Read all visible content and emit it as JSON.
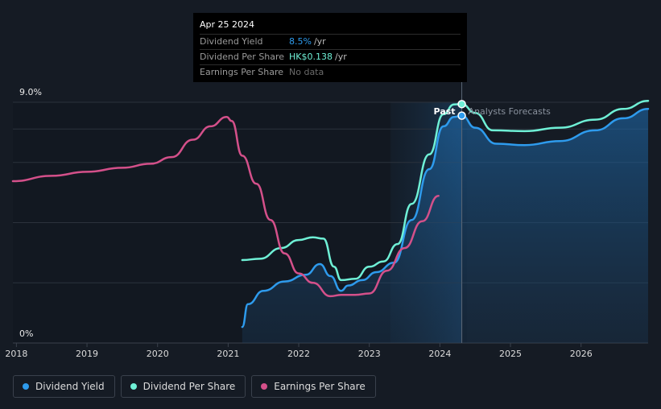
{
  "tooltip": {
    "date": "Apr 25 2024",
    "rows": [
      {
        "label": "Dividend Yield",
        "value": "8.5%",
        "unit": "/yr",
        "color": "#2e9bed"
      },
      {
        "label": "Dividend Per Share",
        "value": "HK$0.138",
        "unit": "/yr",
        "color": "#6ff0d6"
      },
      {
        "label": "Earnings Per Share",
        "value": "No data",
        "unit": "",
        "color": "#6b6b6b"
      }
    ]
  },
  "legend": [
    {
      "label": "Dividend Yield",
      "color": "#2e9bed"
    },
    {
      "label": "Dividend Per Share",
      "color": "#6ff0d6"
    },
    {
      "label": "Earnings Per Share",
      "color": "#d4508a"
    }
  ],
  "chart_data": {
    "type": "line",
    "y_axis": {
      "top_label": "9.0%",
      "bottom_label": "0%",
      "ylim": [
        0,
        9.0
      ]
    },
    "x_axis": {
      "ticks": [
        "2018",
        "2019",
        "2020",
        "2021",
        "2022",
        "2023",
        "2024",
        "2025",
        "2026"
      ],
      "xlim": [
        2017.95,
        2026.95
      ]
    },
    "regions": {
      "past_label": "Past",
      "forecast_label": "Analysts Forecasts",
      "past_start": 2023.3,
      "split": 2024.31
    },
    "highlight_date": 2024.31,
    "series": [
      {
        "name": "Dividend Yield",
        "color": "#2e9bed",
        "fill": true,
        "points": [
          [
            2021.2,
            0.6
          ],
          [
            2021.28,
            1.45
          ],
          [
            2021.5,
            1.95
          ],
          [
            2021.8,
            2.3
          ],
          [
            2022.1,
            2.55
          ],
          [
            2022.3,
            2.95
          ],
          [
            2022.45,
            2.5
          ],
          [
            2022.6,
            1.95
          ],
          [
            2022.7,
            2.15
          ],
          [
            2022.9,
            2.35
          ],
          [
            2023.1,
            2.65
          ],
          [
            2023.35,
            3.0
          ],
          [
            2023.6,
            4.6
          ],
          [
            2023.85,
            6.5
          ],
          [
            2024.05,
            8.1
          ],
          [
            2024.2,
            8.45
          ],
          [
            2024.31,
            8.5
          ],
          [
            2024.5,
            8.05
          ],
          [
            2024.8,
            7.45
          ],
          [
            2025.2,
            7.4
          ],
          [
            2025.7,
            7.55
          ],
          [
            2026.2,
            7.95
          ],
          [
            2026.6,
            8.4
          ],
          [
            2026.95,
            8.75
          ]
        ]
      },
      {
        "name": "Dividend Per Share",
        "color": "#6ff0d6",
        "fill": false,
        "points": [
          [
            2021.2,
            3.1
          ],
          [
            2021.45,
            3.15
          ],
          [
            2021.75,
            3.55
          ],
          [
            2022.0,
            3.85
          ],
          [
            2022.2,
            3.95
          ],
          [
            2022.35,
            3.9
          ],
          [
            2022.5,
            2.85
          ],
          [
            2022.6,
            2.35
          ],
          [
            2022.8,
            2.4
          ],
          [
            2023.0,
            2.85
          ],
          [
            2023.2,
            3.05
          ],
          [
            2023.4,
            3.7
          ],
          [
            2023.6,
            5.2
          ],
          [
            2023.85,
            7.05
          ],
          [
            2024.05,
            8.55
          ],
          [
            2024.2,
            8.92
          ],
          [
            2024.31,
            8.93
          ],
          [
            2024.5,
            8.6
          ],
          [
            2024.75,
            7.95
          ],
          [
            2025.2,
            7.92
          ],
          [
            2025.7,
            8.05
          ],
          [
            2026.2,
            8.35
          ],
          [
            2026.6,
            8.75
          ],
          [
            2026.95,
            9.05
          ]
        ]
      },
      {
        "name": "Earnings Per Share",
        "color": "#d4508a",
        "fill": false,
        "points": [
          [
            2017.95,
            6.05
          ],
          [
            2018.5,
            6.25
          ],
          [
            2019.0,
            6.4
          ],
          [
            2019.5,
            6.55
          ],
          [
            2019.9,
            6.7
          ],
          [
            2020.2,
            6.95
          ],
          [
            2020.5,
            7.6
          ],
          [
            2020.75,
            8.1
          ],
          [
            2020.98,
            8.45
          ],
          [
            2021.05,
            8.3
          ],
          [
            2021.2,
            7.0
          ],
          [
            2021.4,
            5.95
          ],
          [
            2021.6,
            4.6
          ],
          [
            2021.8,
            3.35
          ],
          [
            2022.0,
            2.6
          ],
          [
            2022.2,
            2.25
          ],
          [
            2022.45,
            1.75
          ],
          [
            2022.6,
            1.8
          ],
          [
            2022.8,
            1.8
          ],
          [
            2023.0,
            1.85
          ],
          [
            2023.25,
            2.7
          ],
          [
            2023.5,
            3.55
          ],
          [
            2023.75,
            4.55
          ],
          [
            2023.98,
            5.5
          ]
        ]
      }
    ]
  }
}
